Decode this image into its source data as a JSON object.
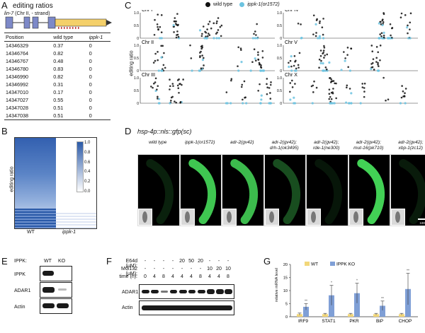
{
  "panel_a": {
    "letter": "A",
    "title": "editing ratios",
    "gene_label": "lin-7",
    "gene_loc": " (Chr II, - strand)",
    "table": {
      "headers": [
        "Position",
        "wild type",
        "ippk-1"
      ],
      "rows": [
        [
          "14346329",
          "0.37",
          "0"
        ],
        [
          "14346764",
          "0.82",
          "0"
        ],
        [
          "14346767",
          "0.48",
          "0"
        ],
        [
          "14346780",
          "0.83",
          "0"
        ],
        [
          "14346990",
          "0.82",
          "0"
        ],
        [
          "14346992",
          "0.31",
          "0"
        ],
        [
          "14347010",
          "0.17",
          "0"
        ],
        [
          "14347027",
          "0.55",
          "0"
        ],
        [
          "14347028",
          "0.51",
          "0"
        ],
        [
          "14347038",
          "0.51",
          "0"
        ]
      ]
    }
  },
  "panel_b": {
    "letter": "B",
    "ylabel": "editing ratio",
    "xlabels": [
      "WT",
      "ippk-1"
    ],
    "colorbar_ticks": [
      "1.0",
      "0.8",
      "0.6",
      "0.4",
      "0.2",
      "0.0"
    ],
    "colors": {
      "high": "#2b5aa8",
      "low": "#ffffff"
    }
  },
  "panel_c": {
    "letter": "C",
    "legend": [
      "wild type",
      "ippk-1(or1572)"
    ],
    "colors": {
      "wild_type": "#111111",
      "ippk": "#6cc3e0"
    },
    "ylabel": "editing ratio",
    "y_ticks": [
      "1.0",
      "0.5",
      "0"
    ],
    "chromosomes": [
      "Chr I",
      "Chr II",
      "Chr III",
      "Chr IV",
      "Chr V",
      "Chr X"
    ]
  },
  "panel_d": {
    "letter": "D",
    "title": "hsp-4p::nls::gfp(sc)",
    "columns": [
      [
        "wild type",
        ""
      ],
      [
        "ippk-1(or1572)",
        ""
      ],
      [
        "adr-2(gv42)",
        ""
      ],
      [
        "adr-2(gv42);",
        "drh-1(ok3495)"
      ],
      [
        "adr-2(gv42);",
        "rde-1(ne300)"
      ],
      [
        "adr-2(gv42);",
        "mut-16(pk710)"
      ],
      [
        "adr-2(gv42);",
        "xbp-1(zc12)"
      ]
    ],
    "scale_bar": "100 μm"
  },
  "panel_e": {
    "letter": "E",
    "header_label": "IPPK:",
    "lanes": [
      "WT",
      "KO"
    ],
    "rows": [
      "IPPK",
      "ADAR1",
      "Actin"
    ]
  },
  "panel_f": {
    "letter": "F",
    "treatments": [
      {
        "label": "E64d (μM):",
        "values": [
          "-",
          "-",
          "-",
          "-",
          "20",
          "50",
          "20",
          "-",
          "-",
          "-"
        ]
      },
      {
        "label": "MG132 (μM):",
        "values": [
          "-",
          "-",
          "-",
          "-",
          "-",
          "-",
          "-",
          "10",
          "20",
          "10"
        ]
      },
      {
        "label": "time (h):",
        "values": [
          "0",
          "4",
          "8",
          "4",
          "4",
          "4",
          "8",
          "4",
          "4",
          "8"
        ]
      }
    ],
    "rows": [
      "ADAR1",
      "Actin"
    ]
  },
  "panel_g": {
    "letter": "G",
    "chart_data": {
      "type": "bar",
      "categories": [
        "IRF9",
        "STAT1",
        "PKR",
        "BiP",
        "CHOP"
      ],
      "series": [
        {
          "name": "WT",
          "values": [
            1,
            1,
            1,
            1,
            1
          ],
          "errors": [
            0.4,
            0.3,
            0.3,
            0.3,
            0.3
          ],
          "color": "#f2d77a"
        },
        {
          "name": "IPPK KO",
          "values": [
            3.8,
            8.2,
            9.0,
            4.2,
            10.6
          ],
          "errors": [
            1.2,
            3.8,
            3.8,
            1.8,
            6.0
          ],
          "color": "#7f9fd6"
        }
      ],
      "significance": [
        "**",
        "*",
        "*",
        "**",
        "**"
      ],
      "ylabel": "relative mRNA level",
      "ylim": [
        0,
        20
      ],
      "yticks": [
        "0",
        "5",
        "10",
        "15",
        "20"
      ]
    }
  }
}
